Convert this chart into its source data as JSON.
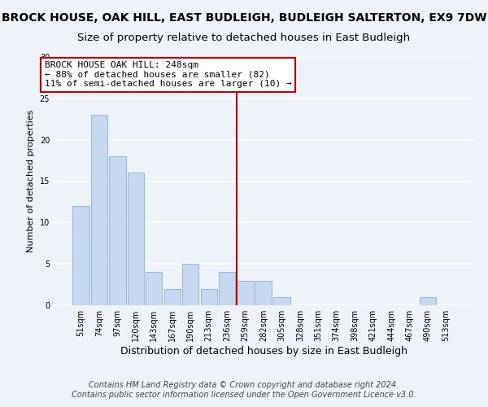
{
  "title": "BROCK HOUSE, OAK HILL, EAST BUDLEIGH, BUDLEIGH SALTERTON, EX9 7DW",
  "subtitle": "Size of property relative to detached houses in East Budleigh",
  "xlabel": "Distribution of detached houses by size in East Budleigh",
  "ylabel": "Number of detached properties",
  "bar_labels": [
    "51sqm",
    "74sqm",
    "97sqm",
    "120sqm",
    "143sqm",
    "167sqm",
    "190sqm",
    "213sqm",
    "236sqm",
    "259sqm",
    "282sqm",
    "305sqm",
    "328sqm",
    "351sqm",
    "374sqm",
    "398sqm",
    "421sqm",
    "444sqm",
    "467sqm",
    "490sqm",
    "513sqm"
  ],
  "bar_values": [
    12,
    23,
    18,
    16,
    4,
    2,
    5,
    2,
    4,
    3,
    3,
    1,
    0,
    0,
    0,
    0,
    0,
    0,
    0,
    1,
    0
  ],
  "bar_color": "#c6d9f0",
  "bar_edge_color": "#8fb8d8",
  "marker_line_color": "#cc0000",
  "annotation_line1": "BROCK HOUSE OAK HILL: 248sqm",
  "annotation_line2": "← 88% of detached houses are smaller (82)",
  "annotation_line3": "11% of semi-detached houses are larger (10) →",
  "annotation_box_color": "#ffffff",
  "annotation_box_edge_color": "#cc0000",
  "ylim": [
    0,
    30
  ],
  "yticks": [
    0,
    5,
    10,
    15,
    20,
    25,
    30
  ],
  "footer1": "Contains HM Land Registry data © Crown copyright and database right 2024.",
  "footer2": "Contains public sector information licensed under the Open Government Licence v3.0.",
  "background_color": "#eef2f9",
  "grid_color": "#ffffff",
  "title_fontsize": 10,
  "subtitle_fontsize": 9.5,
  "xlabel_fontsize": 9,
  "ylabel_fontsize": 8,
  "tick_fontsize": 7,
  "footer_fontsize": 7,
  "annotation_fontsize": 8
}
